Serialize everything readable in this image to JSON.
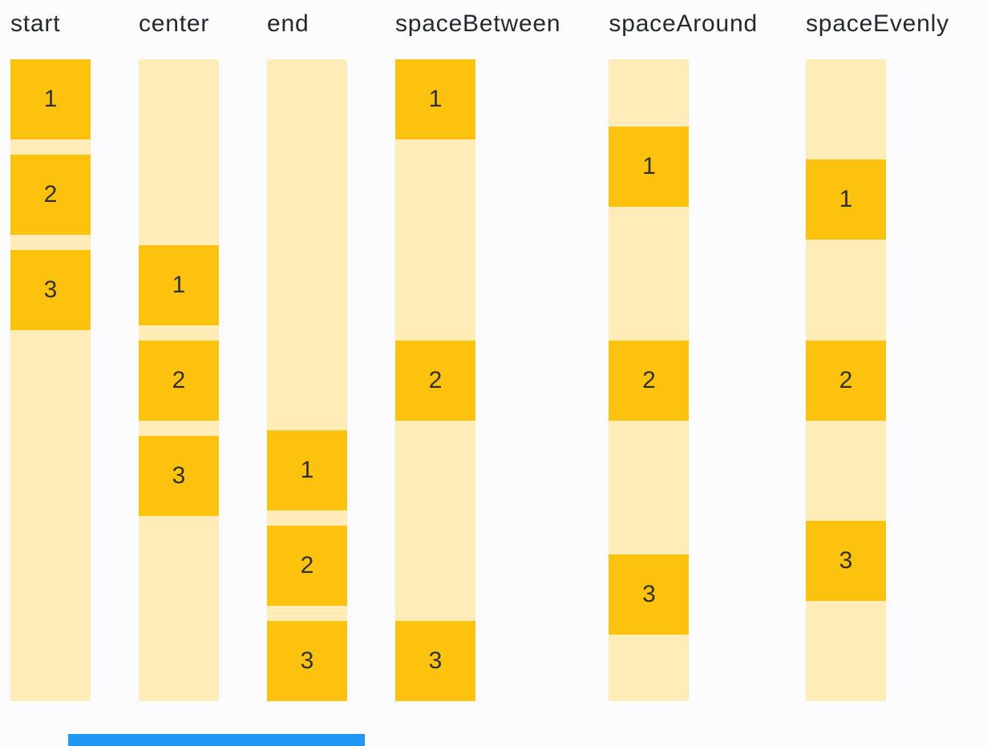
{
  "page": {
    "background_color": "#fcfcff"
  },
  "colors": {
    "item_fill": "#fdc20d",
    "track_fill": "#ffecb8",
    "label_text": "#24292e",
    "item_number_text": "#313131",
    "progress_bar": "#2196f3"
  },
  "columns": [
    {
      "label": "start",
      "items": [
        "1",
        "2",
        "3"
      ]
    },
    {
      "label": "center",
      "items": [
        "1",
        "2",
        "3"
      ]
    },
    {
      "label": "end",
      "items": [
        "1",
        "2",
        "3"
      ]
    },
    {
      "label": "spaceBetween",
      "items": [
        "1",
        "2",
        "3"
      ]
    },
    {
      "label": "spaceAround",
      "items": [
        "1",
        "2",
        "3"
      ]
    },
    {
      "label": "spaceEvenly",
      "items": [
        "1",
        "2",
        "3"
      ]
    }
  ],
  "footer": {
    "progress_bar_present": true
  }
}
